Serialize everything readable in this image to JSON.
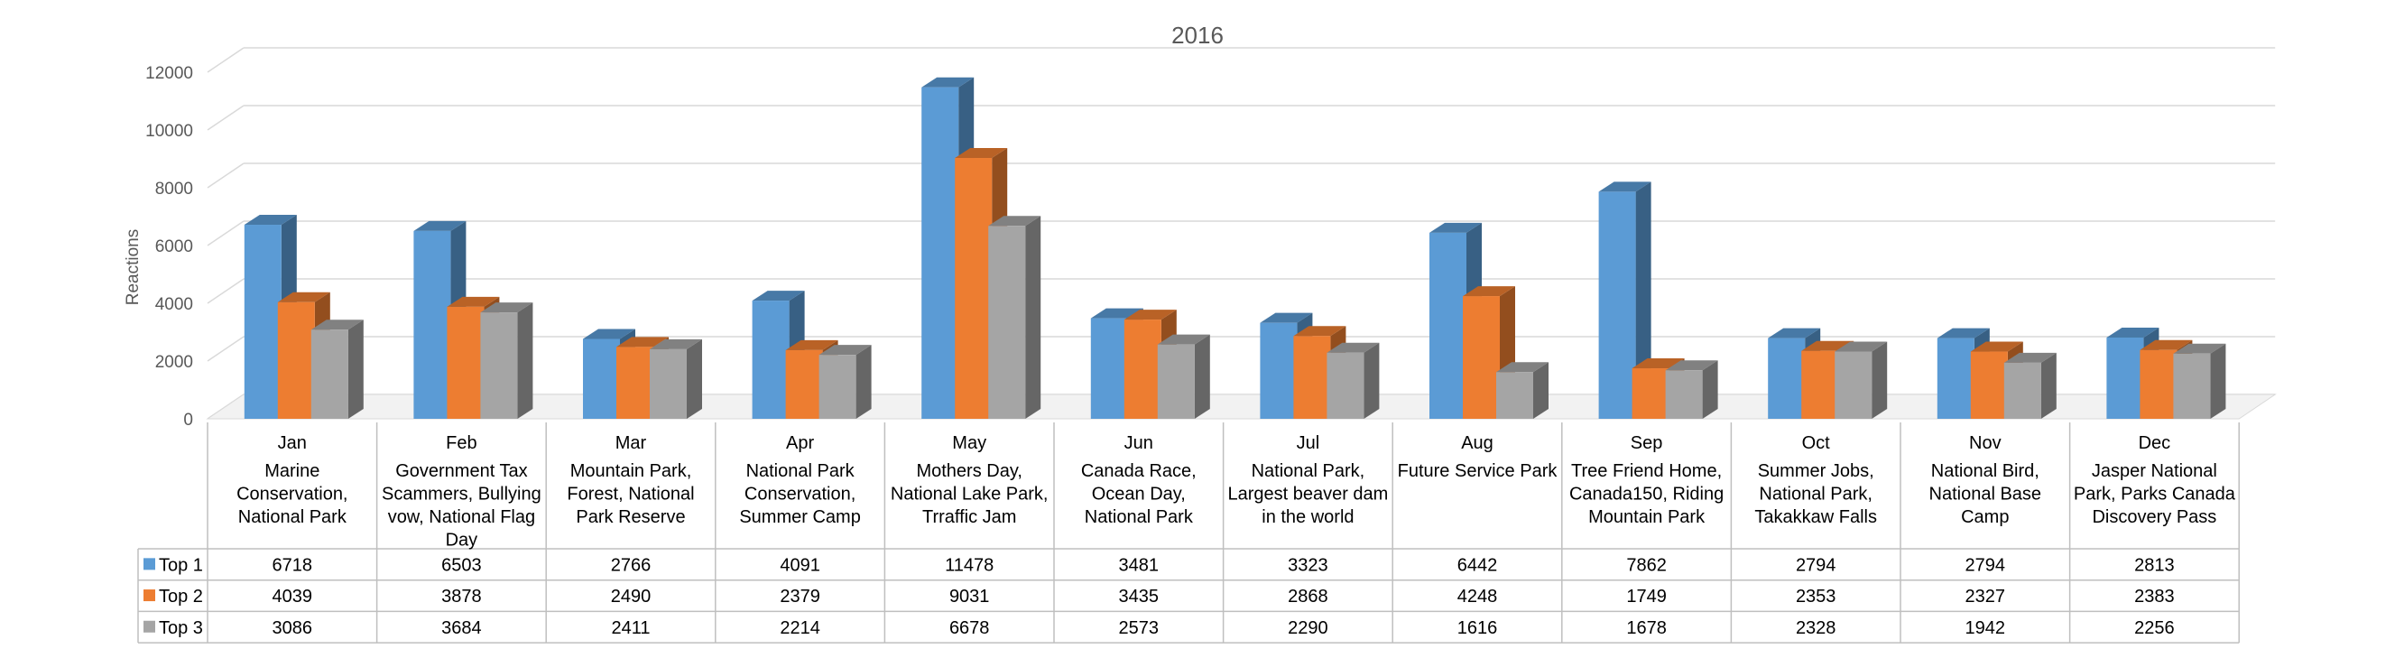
{
  "chart_data": {
    "type": "bar",
    "title": "2016",
    "ylabel": "Reactions",
    "xlabel": "",
    "ylim": [
      0,
      12000
    ],
    "yticks": [
      0,
      2000,
      4000,
      6000,
      8000,
      10000,
      12000
    ],
    "grid": true,
    "three_d": true,
    "legend": "data-table",
    "categories": [
      "Jan",
      "Feb",
      "Mar",
      "Apr",
      "May",
      "Jun",
      "Jul",
      "Aug",
      "Sep",
      "Oct",
      "Nov",
      "Dec"
    ],
    "category_subtitles": [
      [
        "Marine",
        "Conservation,",
        "National Park"
      ],
      [
        "Government Tax",
        "Scammers, Bullying",
        "vow, National Flag",
        "Day"
      ],
      [
        "Mountain Park,",
        "Forest, National",
        "Park Reserve"
      ],
      [
        "National Park",
        "Conservation,",
        "Summer Camp"
      ],
      [
        "Mothers Day,",
        "National Lake Park,",
        "Trraffic Jam"
      ],
      [
        "Canada Race,",
        "Ocean Day,",
        "National Park"
      ],
      [
        "National Park,",
        "Largest beaver dam",
        "in the world"
      ],
      [
        "Future Service Park"
      ],
      [
        "Tree Friend Home,",
        "Canada150, Riding",
        "Mountain Park"
      ],
      [
        "Summer Jobs,",
        "National Park,",
        "Takakkaw Falls"
      ],
      [
        "National Bird,",
        "National  Base",
        "Camp"
      ],
      [
        "Jasper National",
        "Park, Parks Canada",
        "Discovery Pass"
      ]
    ],
    "series": [
      {
        "name": "Top 1",
        "color": "#5B9BD5",
        "values": [
          6718,
          6503,
          2766,
          4091,
          11478,
          3481,
          3323,
          6442,
          7862,
          2794,
          2794,
          2813
        ]
      },
      {
        "name": "Top 2",
        "color": "#ED7D31",
        "values": [
          4039,
          3878,
          2490,
          2379,
          9031,
          3435,
          2868,
          4248,
          1749,
          2353,
          2327,
          2383
        ]
      },
      {
        "name": "Top 3",
        "color": "#A5A5A5",
        "values": [
          3086,
          3684,
          2411,
          2214,
          6678,
          2573,
          2290,
          1616,
          1678,
          2328,
          1942,
          2256
        ]
      }
    ]
  }
}
